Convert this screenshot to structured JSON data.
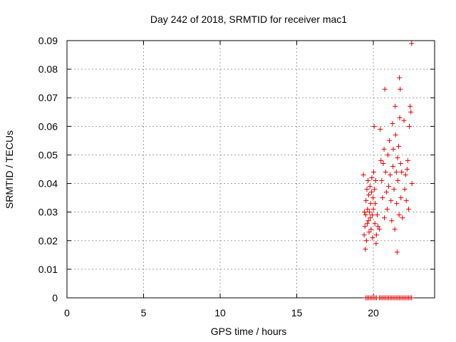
{
  "chart_data": {
    "type": "scatter",
    "title": "Day 242 of 2018, SRMTID for receiver mac1",
    "xlabel": "GPS time / hours",
    "ylabel": "SRMTID / TECUs",
    "xlim": [
      0,
      24
    ],
    "ylim": [
      0,
      0.09
    ],
    "grid": true,
    "marker": "+",
    "color": "#dd0000",
    "xticks": [
      0,
      5,
      10,
      15,
      20
    ],
    "xtick_labels": [
      "0",
      "5",
      "10",
      "15",
      "20"
    ],
    "yticks": [
      0,
      0.01,
      0.02,
      0.03,
      0.04,
      0.05,
      0.06,
      0.07,
      0.08,
      0.09
    ],
    "ytick_labels": [
      "0",
      "0.01",
      "0.02",
      "0.03",
      "0.04",
      "0.05",
      "0.06",
      "0.07",
      "0.08",
      "0.09"
    ],
    "points": [
      [
        19.35,
        0.043
      ],
      [
        19.4,
        0.022
      ],
      [
        19.42,
        0.03
      ],
      [
        19.45,
        0.025
      ],
      [
        19.48,
        0.017
      ],
      [
        19.5,
        0.029
      ],
      [
        19.52,
        0.034
      ],
      [
        19.55,
        0.02
      ],
      [
        19.58,
        0.038
      ],
      [
        19.6,
        0.026
      ],
      [
        19.62,
        0.031
      ],
      [
        19.65,
        0.041
      ],
      [
        19.68,
        0.027
      ],
      [
        19.7,
        0.036
      ],
      [
        19.72,
        0.023
      ],
      [
        19.75,
        0.03
      ],
      [
        19.78,
        0.039
      ],
      [
        19.8,
        0.028
      ],
      [
        19.82,
        0.033
      ],
      [
        19.85,
        0.024
      ],
      [
        19.88,
        0.037
      ],
      [
        19.9,
        0.042
      ],
      [
        19.92,
        0.029
      ],
      [
        19.95,
        0.021
      ],
      [
        19.98,
        0.035
      ],
      [
        20.0,
        0.031
      ],
      [
        20.02,
        0.044
      ],
      [
        20.05,
        0.06
      ],
      [
        20.08,
        0.038
      ],
      [
        20.1,
        0.026
      ],
      [
        20.12,
        0.033
      ],
      [
        20.15,
        0.041
      ],
      [
        20.18,
        0.019
      ],
      [
        20.2,
        0.022
      ],
      [
        20.25,
        0.029
      ],
      [
        20.3,
        0.025
      ],
      [
        20.4,
        0.024
      ],
      [
        20.45,
        0.059
      ],
      [
        20.5,
        0.048
      ],
      [
        20.55,
        0.041
      ],
      [
        20.6,
        0.035
      ],
      [
        20.65,
        0.047
      ],
      [
        20.7,
        0.052
      ],
      [
        20.72,
        0.028
      ],
      [
        20.75,
        0.073
      ],
      [
        20.8,
        0.044
      ],
      [
        20.85,
        0.037
      ],
      [
        20.9,
        0.031
      ],
      [
        20.95,
        0.05
      ],
      [
        21.0,
        0.039
      ],
      [
        21.05,
        0.055
      ],
      [
        21.1,
        0.043
      ],
      [
        21.15,
        0.034
      ],
      [
        21.2,
        0.027
      ],
      [
        21.25,
        0.061
      ],
      [
        21.28,
        0.046
      ],
      [
        21.3,
        0.052
      ],
      [
        21.35,
        0.038
      ],
      [
        21.4,
        0.024
      ],
      [
        21.42,
        0.067
      ],
      [
        21.45,
        0.057
      ],
      [
        21.5,
        0.044
      ],
      [
        21.52,
        0.033
      ],
      [
        21.55,
        0.016
      ],
      [
        21.58,
        0.049
      ],
      [
        21.6,
        0.041
      ],
      [
        21.65,
        0.053
      ],
      [
        21.68,
        0.029
      ],
      [
        21.7,
        0.077
      ],
      [
        21.72,
        0.063
      ],
      [
        21.75,
        0.073
      ],
      [
        21.78,
        0.047
      ],
      [
        21.8,
        0.035
      ],
      [
        21.85,
        0.044
      ],
      [
        21.9,
        0.028
      ],
      [
        22.0,
        0.062
      ],
      [
        22.05,
        0.038
      ],
      [
        22.1,
        0.043
      ],
      [
        22.15,
        0.034
      ],
      [
        22.2,
        0.045
      ],
      [
        22.25,
        0.048
      ],
      [
        22.3,
        0.031
      ],
      [
        22.35,
        0.06
      ],
      [
        22.4,
        0.067
      ],
      [
        22.45,
        0.065
      ],
      [
        22.5,
        0.089
      ],
      [
        22.52,
        0.04
      ],
      [
        19.5,
        0.0
      ],
      [
        19.6,
        0.0
      ],
      [
        19.7,
        0.0
      ],
      [
        19.8,
        0.0
      ],
      [
        19.9,
        0.0
      ],
      [
        20.0,
        0.0
      ],
      [
        20.1,
        0.0
      ],
      [
        20.2,
        0.0
      ],
      [
        20.4,
        0.0
      ],
      [
        20.5,
        0.0
      ],
      [
        20.6,
        0.0
      ],
      [
        20.7,
        0.0
      ],
      [
        20.8,
        0.0
      ],
      [
        20.9,
        0.0
      ],
      [
        21.0,
        0.0
      ],
      [
        21.1,
        0.0
      ],
      [
        21.2,
        0.0
      ],
      [
        21.3,
        0.0
      ],
      [
        21.4,
        0.0
      ],
      [
        21.5,
        0.0
      ],
      [
        21.6,
        0.0
      ],
      [
        21.7,
        0.0
      ],
      [
        21.8,
        0.0
      ],
      [
        21.9,
        0.0
      ],
      [
        22.0,
        0.0
      ],
      [
        22.1,
        0.0
      ],
      [
        22.2,
        0.0
      ],
      [
        22.3,
        0.0
      ],
      [
        22.4,
        0.0
      ],
      [
        22.5,
        0.0
      ]
    ]
  }
}
